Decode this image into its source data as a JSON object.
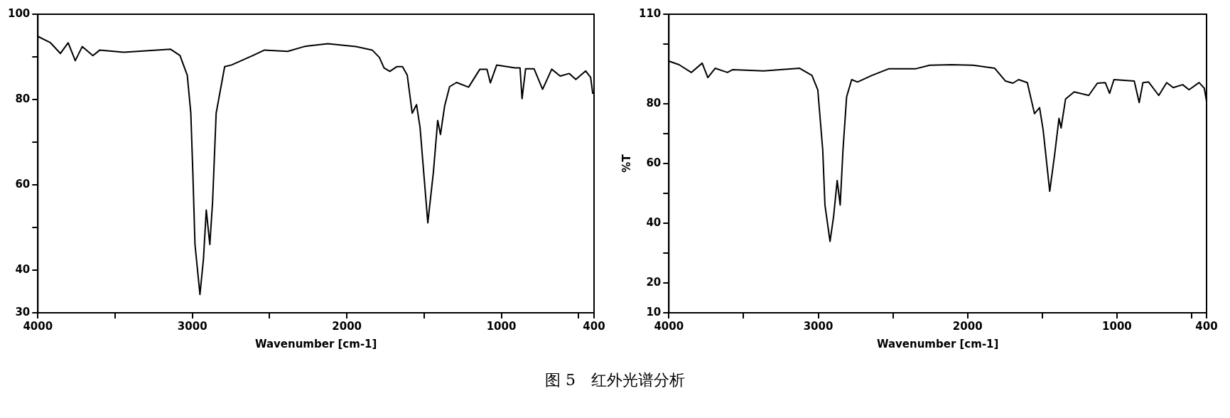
{
  "chart_data": [
    {
      "type": "line",
      "xlabel": "Wavenumber [cm-1]",
      "xlim": [
        4000,
        400
      ],
      "xticks": [
        4000,
        {
          "value": 3500,
          "label": null
        },
        3000,
        {
          "value": 2500,
          "label": null
        },
        2000,
        {
          "value": 1500,
          "label": null
        },
        1000,
        {
          "value": 500,
          "label": null
        },
        400
      ],
      "ylim": [
        30,
        100
      ],
      "yticks": [
        30,
        40,
        {
          "value": 50,
          "label": null
        },
        60,
        {
          "value": 70,
          "label": null
        },
        80,
        {
          "value": 90,
          "label": null
        },
        100
      ],
      "x": [
        4000,
        3918,
        3854,
        3804,
        3758,
        3713,
        3644,
        3599,
        3444,
        3142,
        3080,
        3033,
        3010,
        2997,
        2983,
        2951,
        2928,
        2910,
        2887,
        2869,
        2846,
        2791,
        2746,
        2609,
        2533,
        2383,
        2278,
        2246,
        2123,
        1941,
        1836,
        1790,
        1759,
        1722,
        1677,
        1640,
        1609,
        1577,
        1549,
        1526,
        1476,
        1440,
        1412,
        1394,
        1367,
        1335,
        1290,
        1212,
        1139,
        1093,
        1071,
        1030,
        911,
        879,
        866,
        843,
        788,
        733,
        674,
        619,
        560,
        518,
        454,
        422,
        408
      ],
      "series": [
        {
          "color": "#000000",
          "values": [
            94.8,
            93.3,
            90.8,
            93.3,
            89.1,
            92.4,
            90.3,
            91.6,
            91.1,
            91.8,
            90.3,
            85.7,
            76.8,
            62.9,
            46.0,
            34.3,
            42.7,
            54.1,
            46.0,
            56.1,
            76.8,
            87.7,
            88.1,
            90.3,
            91.6,
            91.3,
            92.4,
            92.6,
            93.1,
            92.4,
            91.6,
            89.9,
            87.4,
            86.6,
            87.7,
            87.7,
            85.7,
            76.8,
            78.8,
            73.4,
            51.1,
            62.9,
            75.1,
            71.8,
            78.5,
            83.0,
            84.0,
            82.9,
            87.1,
            87.1,
            83.9,
            88.1,
            87.4,
            87.4,
            80.2,
            87.2,
            87.2,
            82.4,
            87.1,
            85.5,
            86.1,
            84.7,
            86.7,
            85.2,
            81.3
          ]
        }
      ],
      "annotations": [
        "图 5　红外光谱分析"
      ]
    },
    {
      "type": "line",
      "xlabel": "Wavenumber [cm-1]",
      "ylabel": "%T",
      "xlim": [
        4000,
        400
      ],
      "xticks": [
        4000,
        {
          "value": 3500,
          "label": null
        },
        3000,
        {
          "value": 2500,
          "label": null
        },
        2000,
        {
          "value": 1500,
          "label": null
        },
        1000,
        {
          "value": 500,
          "label": null
        },
        400
      ],
      "ylim": [
        10,
        110
      ],
      "yticks": [
        10,
        20,
        {
          "value": 30,
          "label": null
        },
        40,
        {
          "value": 50,
          "label": null
        },
        60,
        {
          "value": 70,
          "label": null
        },
        80,
        {
          "value": 100,
          "label": null
        },
        110
      ],
      "x": [
        4000,
        3932,
        3850,
        3777,
        3739,
        3690,
        3608,
        3574,
        3366,
        3124,
        3042,
        3003,
        2970,
        2955,
        2921,
        2897,
        2873,
        2853,
        2834,
        2810,
        2776,
        2737,
        2641,
        2529,
        2399,
        2350,
        2254,
        2108,
        1963,
        1818,
        1746,
        1697,
        1658,
        1600,
        1552,
        1518,
        1494,
        1450,
        1417,
        1388,
        1374,
        1344,
        1286,
        1189,
        1131,
        1078,
        1049,
        1020,
        884,
        851,
        826,
        788,
        720,
        667,
        623,
        560,
        517,
        450,
        415,
        400
      ],
      "series": [
        {
          "color": "#000000",
          "values": [
            94.3,
            93.1,
            90.5,
            93.6,
            88.8,
            91.9,
            90.5,
            91.4,
            91.0,
            91.9,
            89.5,
            84.7,
            64.7,
            46.1,
            33.9,
            42.3,
            54.3,
            46.1,
            64.7,
            82.3,
            88.1,
            87.3,
            89.5,
            91.7,
            91.7,
            91.7,
            92.9,
            93.1,
            92.9,
            91.9,
            87.6,
            86.9,
            88.1,
            87.1,
            76.7,
            78.7,
            71.2,
            50.7,
            63.0,
            75.1,
            71.9,
            81.6,
            84.0,
            82.8,
            86.9,
            87.1,
            83.5,
            88.1,
            87.6,
            80.4,
            87.1,
            87.3,
            82.8,
            87.1,
            85.4,
            86.4,
            84.7,
            87.1,
            85.2,
            80.8
          ]
        }
      ]
    }
  ]
}
